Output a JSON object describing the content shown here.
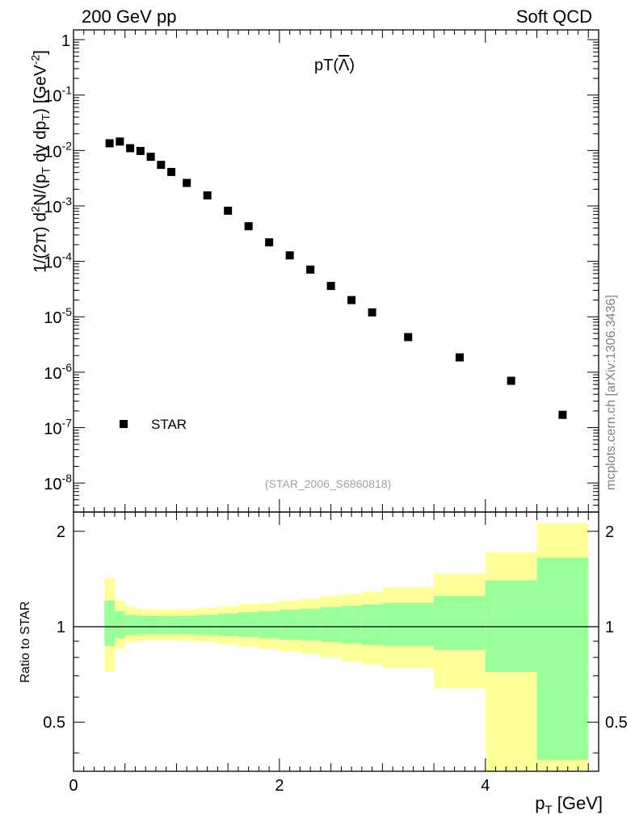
{
  "header": {
    "left": "200 GeV pp",
    "right": "Soft QCD"
  },
  "side_label": "mcplots.cern.ch [arXiv:1306.3436]",
  "chart_data": {
    "type": "scatter",
    "title": "pT(Λ)",
    "title_parts": {
      "prefix": "pT(",
      "symbol": "Λ",
      "suffix": ")"
    },
    "reference": "(STAR_2006_S6860818)",
    "xlabel": {
      "main": "p",
      "sub": "T",
      "unit": " [GeV]"
    },
    "ylabel_text": "1/(2π) d²N/(p_T dy dp_T) [GeV⁻²]",
    "ylabel_parts": {
      "a": "1/(2π) d",
      "b": "2",
      "c": "N/(p",
      "d": "T",
      "e": " dy dp",
      "f": "T",
      "g": ") [GeV",
      "h": "-2",
      "i": "]"
    },
    "xlim": [
      0,
      5.1
    ],
    "ylim_log": [
      3e-09,
      1.5
    ],
    "y_ticks": [
      {
        "value": 1,
        "label": "1"
      },
      {
        "value": 0.1,
        "label": "10",
        "exp": "-1"
      },
      {
        "value": 0.01,
        "label": "10",
        "exp": "-2"
      },
      {
        "value": 0.001,
        "label": "10",
        "exp": "-3"
      },
      {
        "value": 0.0001,
        "label": "10",
        "exp": "-4"
      },
      {
        "value": 1e-05,
        "label": "10",
        "exp": "-5"
      },
      {
        "value": 1e-06,
        "label": "10",
        "exp": "-6"
      },
      {
        "value": 1e-07,
        "label": "10",
        "exp": "-7"
      },
      {
        "value": 1e-08,
        "label": "10",
        "exp": "-8"
      }
    ],
    "x_ticks": [
      {
        "value": 0,
        "label": "0"
      },
      {
        "value": 2,
        "label": "2"
      },
      {
        "value": 4,
        "label": "4"
      }
    ],
    "legend": {
      "entries": [
        "STAR"
      ],
      "position": "bottom-left"
    },
    "series": [
      {
        "name": "STAR",
        "marker": "square",
        "x": [
          0.35,
          0.45,
          0.55,
          0.65,
          0.75,
          0.85,
          0.95,
          1.1,
          1.3,
          1.5,
          1.7,
          1.9,
          2.1,
          2.3,
          2.5,
          2.7,
          2.9,
          3.25,
          3.75,
          4.25,
          4.75
        ],
        "y": [
          0.0135,
          0.0145,
          0.011,
          0.0098,
          0.0077,
          0.0055,
          0.0041,
          0.0026,
          0.00155,
          0.00082,
          0.00043,
          0.00022,
          0.000128,
          7.1e-05,
          3.6e-05,
          2e-05,
          1.2e-05,
          4.3e-06,
          1.85e-06,
          7e-07,
          1.7e-07
        ]
      }
    ],
    "ratio": {
      "ylabel": "Ratio to STAR",
      "ylim": [
        0.35,
        2.3
      ],
      "y_ticks": [
        {
          "value": 2,
          "label": "2"
        },
        {
          "value": 1,
          "label": "1"
        },
        {
          "value": 0.5,
          "label": "0.5"
        }
      ],
      "bins": [
        {
          "lo": 0.3,
          "hi": 0.4,
          "stat": [
            0.87,
            1.21
          ],
          "total": [
            0.72,
            1.42
          ]
        },
        {
          "lo": 0.4,
          "hi": 0.5,
          "stat": [
            0.92,
            1.12
          ],
          "total": [
            0.85,
            1.21
          ]
        },
        {
          "lo": 0.5,
          "hi": 0.6,
          "stat": [
            0.94,
            1.09
          ],
          "total": [
            0.89,
            1.16
          ]
        },
        {
          "lo": 0.6,
          "hi": 0.7,
          "stat": [
            0.945,
            1.085
          ],
          "total": [
            0.9,
            1.14
          ]
        },
        {
          "lo": 0.7,
          "hi": 0.8,
          "stat": [
            0.947,
            1.083
          ],
          "total": [
            0.905,
            1.135
          ]
        },
        {
          "lo": 0.8,
          "hi": 0.9,
          "stat": [
            0.948,
            1.082
          ],
          "total": [
            0.905,
            1.135
          ]
        },
        {
          "lo": 0.9,
          "hi": 1.0,
          "stat": [
            0.948,
            1.082
          ],
          "total": [
            0.905,
            1.135
          ]
        },
        {
          "lo": 1.0,
          "hi": 1.2,
          "stat": [
            0.946,
            1.084
          ],
          "total": [
            0.902,
            1.135
          ]
        },
        {
          "lo": 1.2,
          "hi": 1.4,
          "stat": [
            0.942,
            1.09
          ],
          "total": [
            0.895,
            1.145
          ]
        },
        {
          "lo": 1.4,
          "hi": 1.6,
          "stat": [
            0.935,
            1.1
          ],
          "total": [
            0.88,
            1.16
          ]
        },
        {
          "lo": 1.6,
          "hi": 1.8,
          "stat": [
            0.928,
            1.112
          ],
          "total": [
            0.865,
            1.18
          ]
        },
        {
          "lo": 1.8,
          "hi": 2.0,
          "stat": [
            0.92,
            1.12
          ],
          "total": [
            0.85,
            1.19
          ]
        },
        {
          "lo": 2.0,
          "hi": 2.2,
          "stat": [
            0.91,
            1.132
          ],
          "total": [
            0.835,
            1.21
          ]
        },
        {
          "lo": 2.2,
          "hi": 2.4,
          "stat": [
            0.905,
            1.14
          ],
          "total": [
            0.82,
            1.225
          ]
        },
        {
          "lo": 2.4,
          "hi": 2.6,
          "stat": [
            0.895,
            1.155
          ],
          "total": [
            0.8,
            1.25
          ]
        },
        {
          "lo": 2.6,
          "hi": 2.8,
          "stat": [
            0.885,
            1.165
          ],
          "total": [
            0.775,
            1.27
          ]
        },
        {
          "lo": 2.8,
          "hi": 3.0,
          "stat": [
            0.875,
            1.175
          ],
          "total": [
            0.76,
            1.29
          ]
        },
        {
          "lo": 3.0,
          "hi": 3.5,
          "stat": [
            0.87,
            1.19
          ],
          "total": [
            0.74,
            1.33
          ]
        },
        {
          "lo": 3.5,
          "hi": 4.0,
          "stat": [
            0.845,
            1.25
          ],
          "total": [
            0.64,
            1.47
          ]
        },
        {
          "lo": 4.0,
          "hi": 4.5,
          "stat": [
            0.72,
            1.4
          ],
          "total": [
            0.35,
            1.72
          ]
        },
        {
          "lo": 4.5,
          "hi": 5.0,
          "stat": [
            0.38,
            1.65
          ],
          "total": [
            0.35,
            2.12
          ]
        }
      ],
      "reference_line": 1,
      "colors": {
        "stat": "#99ff99",
        "total": "#ffff99"
      }
    },
    "colors": {
      "marker": "#000000",
      "axis": "#000000"
    }
  }
}
